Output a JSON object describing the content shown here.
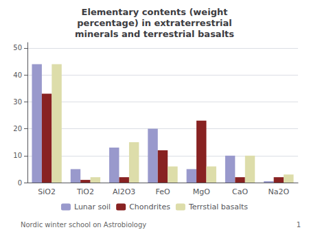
{
  "chart_data": {
    "type": "bar",
    "title": "Elementary contents (weight\npercentage) in extraterrestrial\nminerals and terrestrial basalts",
    "categories": [
      "SiO2",
      "TiO2",
      "Al2O3",
      "FeO",
      "MgO",
      "CaO",
      "Na2O"
    ],
    "series": [
      {
        "name": "Lunar soil",
        "color": "#9999cc",
        "values": [
          44,
          5,
          13,
          20,
          5,
          10,
          0.5
        ]
      },
      {
        "name": "Chondrites",
        "color": "#882222",
        "values": [
          33,
          1,
          2,
          12,
          23,
          2,
          2
        ]
      },
      {
        "name": "Terrstial basalts",
        "color": "#ddddaa",
        "values": [
          44,
          2,
          15,
          6,
          6,
          10,
          3
        ]
      }
    ],
    "ylim": [
      0,
      52
    ],
    "yticks": [
      0,
      10,
      20,
      30,
      40,
      50
    ],
    "grid": true,
    "legend": "bottom",
    "annotations": [
      "Nordic winter school on Astrobiology",
      "1"
    ]
  }
}
